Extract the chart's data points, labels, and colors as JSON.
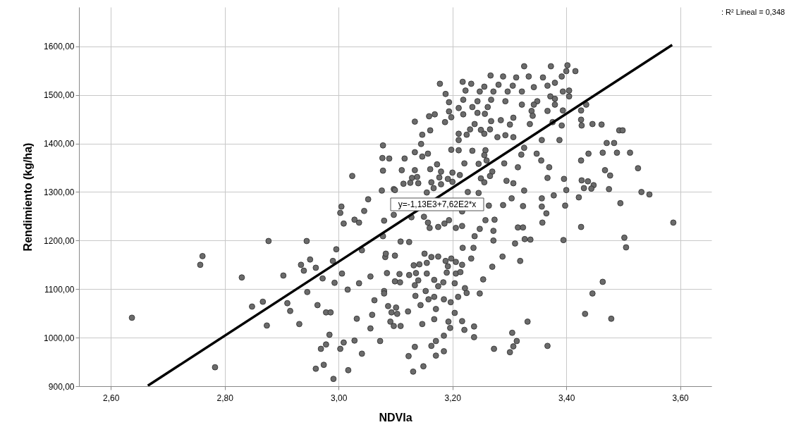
{
  "chart_data": {
    "type": "scatter",
    "xlabel": "NDVIa",
    "ylabel": "Rendimiento (kg/ha)",
    "xlim": [
      2.544,
      3.655
    ],
    "ylim": [
      900,
      1681
    ],
    "xticks": [
      {
        "value": 2.6,
        "label": "2,60"
      },
      {
        "value": 2.8,
        "label": "2,80"
      },
      {
        "value": 3.0,
        "label": "3,00"
      },
      {
        "value": 3.2,
        "label": "3,20"
      },
      {
        "value": 3.4,
        "label": "3,40"
      },
      {
        "value": 3.6,
        "label": "3,60"
      }
    ],
    "yticks": [
      {
        "value": 900,
        "label": "900,00"
      },
      {
        "value": 1000,
        "label": "1000,00"
      },
      {
        "value": 1100,
        "label": "1100,00"
      },
      {
        "value": 1200,
        "label": "1200,00"
      },
      {
        "value": 1300,
        "label": "1300,00"
      },
      {
        "value": 1400,
        "label": "1400,00"
      },
      {
        "value": 1500,
        "label": "1500,00"
      },
      {
        "value": 1600,
        "label": "1600,00"
      }
    ],
    "grid": true,
    "marker": "circle",
    "annotations": [
      "y=-1,13E3+7,62E2*x",
      ": R² Lineal = 0,348"
    ],
    "series": [
      {
        "color": "#6b6b6b",
        "x": [
          2.637,
          2.761,
          2.757,
          2.783,
          2.83,
          2.848,
          2.867,
          2.874,
          2.877,
          2.903,
          2.91,
          2.915,
          2.931,
          2.934,
          2.939,
          2.944,
          2.945,
          2.95,
          2.96,
          2.963,
          2.96,
          2.974,
          2.969,
          2.978,
          2.984,
          2.991,
          2.972,
          2.978,
          2.986,
          2.993,
          2.99,
          2.996,
          3.005,
          3.003,
          3.009,
          3.006,
          3.016,
          3.003,
          3.009,
          3.017,
          3.024,
          3.028,
          3.028,
          3.036,
          3.036,
          3.032,
          3.041,
          3.041,
          3.045,
          3.052,
          3.056,
          3.059,
          3.056,
          3.063,
          3.073,
          3.076,
          3.078,
          3.077,
          3.078,
          3.078,
          3.08,
          3.082,
          3.326,
          3.373,
          3.402,
          3.416,
          3.4,
          3.392,
          3.267,
          3.289,
          3.312,
          3.334,
          3.359,
          3.38,
          3.178,
          3.218,
          3.233,
          3.256,
          3.281,
          3.306,
          3.343,
          3.367,
          3.223,
          3.248,
          3.272,
          3.297,
          3.322,
          3.188,
          3.394,
          3.405,
          3.405,
          3.372,
          3.38,
          3.194,
          3.219,
          3.244,
          3.268,
          3.293,
          3.322,
          3.349,
          3.343,
          3.38,
          3.211,
          3.235,
          3.262,
          3.339,
          3.367,
          3.394,
          3.426,
          3.435,
          3.194,
          3.159,
          3.169,
          3.219,
          3.244,
          3.257,
          3.341,
          3.426,
          3.134,
          3.187,
          3.198,
          3.268,
          3.285,
          3.307,
          3.301,
          3.239,
          3.336,
          3.376,
          3.392,
          3.427,
          3.446,
          3.462,
          3.161,
          3.231,
          3.25,
          3.266,
          3.493,
          3.499,
          3.147,
          3.211,
          3.225,
          3.256,
          3.279,
          3.293,
          3.307,
          3.357,
          3.388,
          3.211,
          3.145,
          3.198,
          3.211,
          3.235,
          3.258,
          3.326,
          3.471,
          3.484,
          3.134,
          3.157,
          3.116,
          3.147,
          3.256,
          3.321,
          3.348,
          3.439,
          3.464,
          3.489,
          3.512,
          3.26,
          3.356,
          3.426,
          3.291,
          3.221,
          3.173,
          3.246,
          3.315,
          3.37,
          3.526,
          3.468,
          3.477,
          3.111,
          3.134,
          3.161,
          3.18,
          3.2,
          3.27,
          3.213,
          3.129,
          3.138,
          3.177,
          3.192,
          3.266,
          3.25,
          3.367,
          3.396,
          3.114,
          3.126,
          3.14,
          3.163,
          3.2,
          3.256,
          3.295,
          3.307,
          3.427,
          3.438,
          3.448,
          3.431,
          3.444,
          3.475,
          3.4,
          3.167,
          3.18,
          3.097,
          3.155,
          3.227,
          3.246,
          3.326,
          3.532,
          3.546,
          3.357,
          3.378,
          3.422,
          3.304,
          3.495,
          3.264,
          3.289,
          3.324,
          3.357,
          3.398,
          3.217,
          3.15,
          3.128,
          3.08,
          3.097,
          3.194,
          3.258,
          3.274,
          3.365,
          3.588,
          3.157,
          3.175,
          3.16,
          3.186,
          3.217,
          3.206,
          3.248,
          3.272,
          3.315,
          3.324,
          3.358,
          3.426,
          3.239,
          3.272,
          3.31,
          3.327,
          3.337,
          3.395,
          3.502,
          3.505,
          3.109,
          3.124,
          3.218,
          3.237,
          3.288,
          3.233,
          3.319,
          3.27,
          3.083,
          3.099,
          3.151,
          3.163,
          3.175,
          3.188,
          3.198,
          3.206,
          3.217,
          3.132,
          3.142,
          3.155,
          3.085,
          3.107,
          3.124,
          3.136,
          3.155,
          3.192,
          3.19,
          3.206,
          3.214,
          3.254,
          3.099,
          3.108,
          3.14,
          3.168,
          3.184,
          3.204,
          3.464,
          3.08,
          3.134,
          3.153,
          3.175,
          3.222,
          3.225,
          3.248,
          3.446,
          3.135,
          3.158,
          3.168,
          3.185,
          3.197,
          3.21,
          3.087,
          3.101,
          3.093,
          3.103,
          3.122,
          3.144,
          3.171,
          3.204,
          3.168,
          3.433,
          3.479,
          3.091,
          3.097,
          3.109,
          3.147,
          3.193,
          3.196,
          3.217,
          3.221,
          3.238,
          3.238,
          3.332,
          3.305,
          3.313,
          3.307,
          3.301,
          3.273,
          3.367,
          3.185,
          3.171,
          3.163,
          3.134,
          3.123,
          3.171,
          3.185,
          3.149,
          3.131,
          3.089,
          3.099
        ],
        "values": [
          1041,
          1168,
          1150,
          939,
          1124,
          1064,
          1074,
          1025,
          1199,
          1128,
          1071,
          1055,
          1028,
          1150,
          1138,
          1199,
          1094,
          1161,
          1144,
          1067,
          936,
          944,
          977,
          986,
          1006,
          915,
          1122,
          1052,
          1052,
          1113,
          1158,
          1182,
          1270,
          1257,
          1235,
          1132,
          1099,
          977,
          990,
          933,
          1333,
          994,
          1243,
          1237,
          1112,
          1039,
          967,
          1180,
          1261,
          1285,
          1126,
          1047,
          1019,
          1077,
          993,
          1303,
          1344,
          1370,
          1396,
          1209,
          1096,
          1166,
          1559,
          1559,
          1561,
          1549,
          1549,
          1538,
          1540,
          1538,
          1536,
          1538,
          1536,
          1525,
          1523,
          1527,
          1523,
          1517,
          1521,
          1519,
          1516,
          1519,
          1509,
          1507,
          1507,
          1507,
          1507,
          1502,
          1507,
          1509,
          1497,
          1497,
          1492,
          1485,
          1490,
          1487,
          1490,
          1487,
          1480,
          1487,
          1480,
          1480,
          1473,
          1475,
          1475,
          1467,
          1467,
          1468,
          1468,
          1480,
          1466,
          1456,
          1460,
          1460,
          1463,
          1461,
          1457,
          1449,
          1445,
          1444,
          1454,
          1446,
          1448,
          1453,
          1439,
          1440,
          1440,
          1444,
          1437,
          1437,
          1440,
          1439,
          1427,
          1429,
          1428,
          1429,
          1427,
          1427,
          1418,
          1420,
          1418,
          1420,
          1413,
          1417,
          1413,
          1407,
          1407,
          1407,
          1399,
          1387,
          1386,
          1385,
          1386,
          1391,
          1401,
          1401,
          1382,
          1379,
          1369,
          1373,
          1376,
          1377,
          1379,
          1379,
          1381,
          1381,
          1381,
          1365,
          1365,
          1365,
          1359,
          1359,
          1357,
          1358,
          1351,
          1351,
          1349,
          1345,
          1334,
          1345,
          1345,
          1347,
          1342,
          1340,
          1342,
          1335,
          1329,
          1331,
          1330,
          1327,
          1333,
          1328,
          1329,
          1327,
          1317,
          1319,
          1318,
          1320,
          1321,
          1320,
          1323,
          1318,
          1324,
          1322,
          1314,
          1308,
          1307,
          1306,
          1304,
          1308,
          1316,
          1306,
          1299,
          1300,
          1298,
          1303,
          1300,
          1295,
          1287,
          1293,
          1289,
          1287,
          1277,
          1272,
          1273,
          1271,
          1270,
          1272,
          1260,
          1249,
          1248,
          1241,
          1253,
          1242,
          1242,
          1243,
          1256,
          1237,
          1237,
          1228,
          1226,
          1235,
          1230,
          1226,
          1224,
          1220,
          1227,
          1227,
          1237,
          1228,
          1209,
          1200,
          1194,
          1203,
          1202,
          1201,
          1206,
          1186,
          1198,
          1197,
          1185,
          1185,
          1167,
          1163,
          1158,
          1146,
          1173,
          1169,
          1173,
          1166,
          1167,
          1158,
          1163,
          1156,
          1150,
          1149,
          1151,
          1154,
          1133,
          1131,
          1129,
          1133,
          1132,
          1147,
          1134,
          1132,
          1135,
          1120,
          1116,
          1114,
          1118,
          1119,
          1114,
          1112,
          1115,
          1091,
          1108,
          1096,
          1106,
          1102,
          1092,
          1091,
          1091,
          1086,
          1079,
          1084,
          1079,
          1073,
          1084,
          1065,
          1062,
          1052,
          1049,
          1054,
          1067,
          1059,
          1051,
          1038,
          1049,
          1039,
          1033,
          1024,
          1024,
          1028,
          1033,
          1020,
          1034,
          1016,
          1023,
          1001,
          1033,
          1010,
          993,
          982,
          970,
          977,
          983,
          1004,
          993,
          983,
          981,
          962,
          963,
          972,
          941,
          930,
          1369,
          1304
        ]
      },
      {
        "type": "line",
        "marker": "none",
        "color": "#000000",
        "x": [
          2.665,
          3.586
        ],
        "values": [
          901,
          1603
        ]
      }
    ]
  }
}
